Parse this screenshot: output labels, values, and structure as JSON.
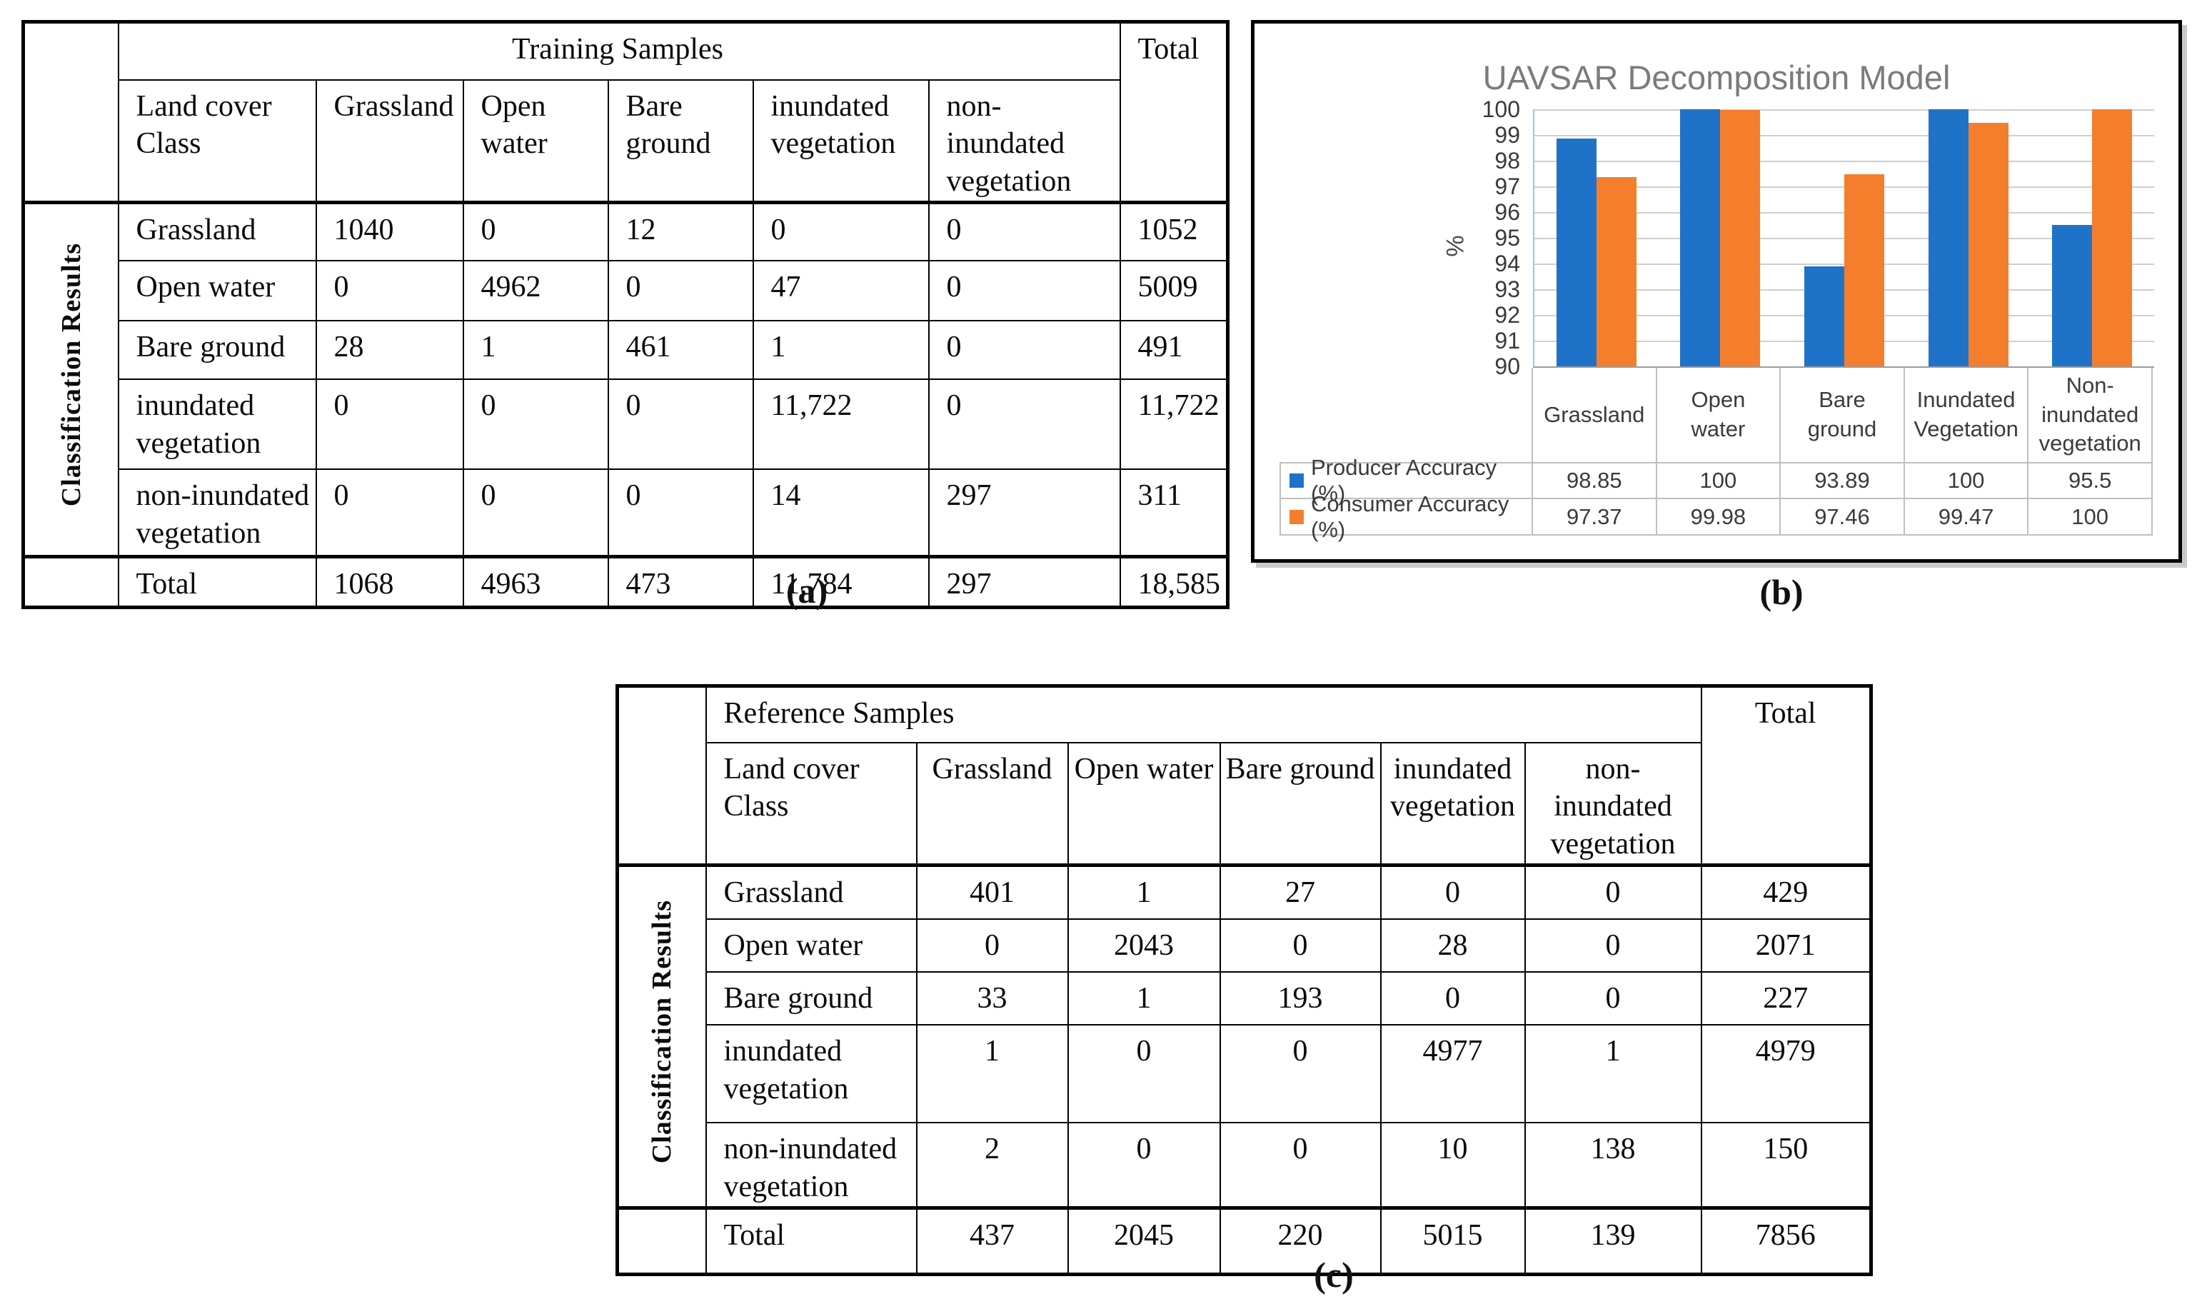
{
  "captions": {
    "a": "(a)",
    "b": "(b)",
    "c": "(c)"
  },
  "table_a": {
    "group_header": "Training Samples",
    "total_header": "Total",
    "side_label": "Classification Results",
    "col_label": "Land cover Class",
    "columns": [
      "Grassland",
      "Open water",
      "Bare ground",
      "inundated vegetation",
      "non-inundated vegetation"
    ],
    "rows": [
      {
        "label": "Grassland",
        "values": [
          "1040",
          "0",
          "12",
          "0",
          "0"
        ],
        "total": "1052"
      },
      {
        "label": "Open water",
        "values": [
          "0",
          "4962",
          "0",
          "47",
          "0"
        ],
        "total": "5009"
      },
      {
        "label": "Bare ground",
        "values": [
          "28",
          "1",
          "461",
          "1",
          "0"
        ],
        "total": "491"
      },
      {
        "label": "inundated vegetation",
        "values": [
          "0",
          "0",
          "0",
          "11,722",
          "0"
        ],
        "total": "11,722"
      },
      {
        "label": "non-inundated vegetation",
        "values": [
          "0",
          "0",
          "0",
          "14",
          "297"
        ],
        "total": "311"
      }
    ],
    "total_row": {
      "label": "Total",
      "values": [
        "1068",
        "4963",
        "473",
        "11,784",
        "297"
      ],
      "total": "18,585"
    }
  },
  "table_c": {
    "group_header": "Reference Samples",
    "total_header": "Total",
    "side_label": "Classification Results",
    "col_label": "Land cover Class",
    "columns": [
      "Grassland",
      "Open water",
      "Bare ground",
      "inundated vegetation",
      "non-\ninundated\nvegetation"
    ],
    "rows": [
      {
        "label": "Grassland",
        "values": [
          "401",
          "1",
          "27",
          "0",
          "0"
        ],
        "total": "429"
      },
      {
        "label": "Open water",
        "values": [
          "0",
          "2043",
          "0",
          "28",
          "0"
        ],
        "total": "2071"
      },
      {
        "label": "Bare ground",
        "values": [
          "33",
          "1",
          "193",
          "0",
          "0"
        ],
        "total": "227"
      },
      {
        "label": "inundated vegetation",
        "values": [
          "1",
          "0",
          "0",
          "4977",
          "1"
        ],
        "total": "4979"
      },
      {
        "label": "non-inundated vegetation",
        "values": [
          "2",
          "0",
          "0",
          "10",
          "138"
        ],
        "total": "150"
      }
    ],
    "total_row": {
      "label": "Total",
      "values": [
        "437",
        "2045",
        "220",
        "5015",
        "139"
      ],
      "total": "7856"
    }
  },
  "chart_data": {
    "type": "bar",
    "title": "UAVSAR Decomposition Model",
    "title_color": "#7b7b7b",
    "ylabel": "%",
    "ylim": [
      90,
      100
    ],
    "ytick_step": 1,
    "grid": true,
    "legend_position": "data-table-left",
    "categories": [
      "Grassland",
      "Open water",
      "Bare ground",
      "Inundated Vegetation",
      "Non-inundated vegetation"
    ],
    "category_display": [
      "Grassland",
      "Open\nwater",
      "Bare\nground",
      "Inundated\nVegetation",
      "Non-\ninundated\nvegetation"
    ],
    "series": [
      {
        "name": "Producer Accuracy (%)",
        "color": "#1e73c8",
        "values": [
          98.85,
          100,
          93.89,
          100,
          95.5
        ],
        "display": [
          "98.85",
          "100",
          "93.89",
          "100",
          "95.5"
        ]
      },
      {
        "name": "Consumer Accuracy (%)",
        "color": "#f57e2c",
        "values": [
          97.37,
          99.98,
          97.46,
          99.47,
          100
        ],
        "display": [
          "97.37",
          "99.98",
          "97.46",
          "99.47",
          "100"
        ]
      }
    ]
  }
}
